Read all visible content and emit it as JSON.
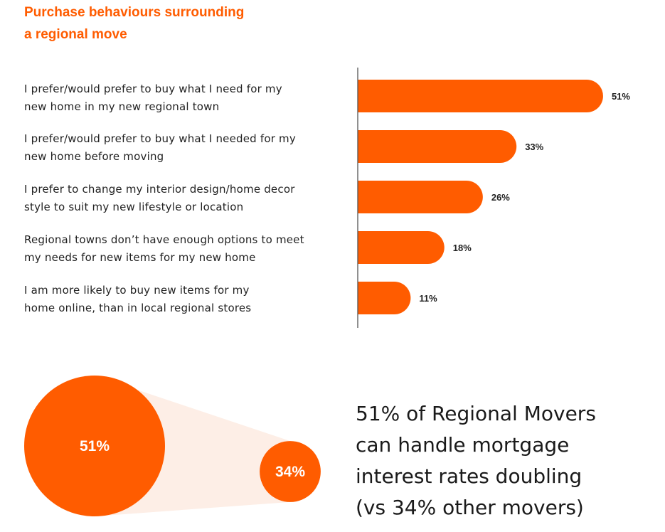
{
  "title": [
    "Purchase behaviours surrounding",
    "a regional move"
  ],
  "accent_color": "#ff5c00",
  "chart_data": [
    {
      "type": "bar",
      "orientation": "horizontal",
      "title": "Purchase behaviours surrounding a regional move",
      "categories": [
        [
          "I prefer/would prefer to buy what I need for my",
          "new home in my new regional town"
        ],
        [
          "I prefer/would prefer to buy what I needed for my",
          "new home before moving"
        ],
        [
          "I prefer to change my interior design/home decor",
          "style to suit my new lifestyle or location"
        ],
        [
          "Regional towns don’t have enough options to meet",
          "my needs for new items for my new home"
        ],
        [
          "I am more likely to buy new items for my",
          "home online, than in local regional stores"
        ]
      ],
      "values": [
        51,
        33,
        26,
        18,
        11
      ],
      "value_labels": [
        "51%",
        "33%",
        "26%",
        "18%",
        "11%"
      ],
      "xlim": [
        0,
        55
      ],
      "grid": false,
      "bar_color": "#ff5c00"
    },
    {
      "type": "bubble",
      "values": [
        51,
        34
      ],
      "value_labels": [
        "51%",
        "34%"
      ],
      "bubble_color": "#ff5c00",
      "connector_color": "#fdeee6"
    }
  ],
  "headline": [
    "51% of Regional Movers",
    "can handle mortgage",
    "interest rates doubling",
    "(vs 34% other movers)"
  ]
}
